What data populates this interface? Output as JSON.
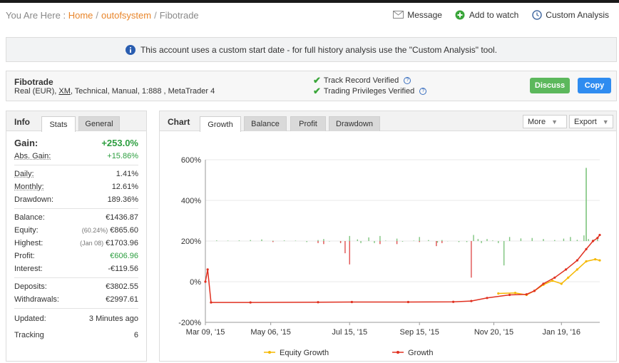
{
  "breadcrumb": {
    "prefix": "You Are Here :",
    "home": "Home",
    "section": "outofsystem",
    "current": "Fibotrade"
  },
  "actions": {
    "message": "Message",
    "watch": "Add to watch",
    "custom": "Custom Analysis"
  },
  "notice": "This account uses a custom start date - for full history analysis use the \"Custom Analysis\" tool.",
  "account": {
    "name": "Fibotrade",
    "detail_prefix": "Real (EUR),",
    "broker": "XM",
    "detail_suffix": ", Technical, Manual, 1:888 , MetaTrader 4",
    "verified_1": "Track Record Verified",
    "verified_2": "Trading Privileges Verified",
    "discuss": "Discuss",
    "copy": "Copy"
  },
  "info": {
    "title": "Info",
    "tabs": [
      "Stats",
      "General"
    ],
    "gain_label": "Gain:",
    "gain_value": "+253.0%",
    "abs_label": "Abs. Gain:",
    "abs_value": "+15.86%",
    "daily_label": "Daily:",
    "daily_value": "1.41%",
    "monthly_label": "Monthly:",
    "monthly_value": "12.61%",
    "drawdown_label": "Drawdown:",
    "drawdown_value": "189.36%",
    "balance_label": "Balance:",
    "balance_value": "€1436.87",
    "equity_label": "Equity:",
    "equity_note": "(60.24%)",
    "equity_value": "€865.60",
    "highest_label": "Highest:",
    "highest_note": "(Jan 08)",
    "highest_value": "€1703.96",
    "profit_label": "Profit:",
    "profit_value": "€606.96",
    "interest_label": "Interest:",
    "interest_value": "-€119.56",
    "deposits_label": "Deposits:",
    "deposits_value": "€3802.55",
    "withdrawals_label": "Withdrawals:",
    "withdrawals_value": "€2997.61",
    "updated_label": "Updated:",
    "updated_value": "3 Minutes ago",
    "tracking_label": "Tracking",
    "tracking_value": "6"
  },
  "chart_panel": {
    "title": "Chart",
    "tabs": [
      "Growth",
      "Balance",
      "Profit",
      "Drawdown"
    ],
    "more": "More",
    "export": "Export"
  },
  "chart_data": {
    "type": "line",
    "y_ticks": [
      "600%",
      "400%",
      "200%",
      "0%",
      "-200%"
    ],
    "ylim": [
      -200,
      600
    ],
    "x_ticks": [
      "Mar 09, '15",
      "May 06, '15",
      "Jul 15, '15",
      "Sep 15, '15",
      "Nov 20, '15",
      "Jan 19, '16"
    ],
    "x_index": [
      0,
      58,
      128,
      190,
      256,
      316
    ],
    "series": [
      {
        "name": "Equity Growth",
        "color": "#f5b800",
        "points": [
          [
            260,
            -58
          ],
          [
            275,
            -55
          ],
          [
            285,
            -65
          ],
          [
            292,
            -45
          ],
          [
            300,
            -15
          ],
          [
            308,
            5
          ],
          [
            316,
            -10
          ],
          [
            322,
            20
          ],
          [
            330,
            60
          ],
          [
            338,
            100
          ],
          [
            346,
            110
          ],
          [
            350,
            105
          ]
        ]
      },
      {
        "name": "Growth",
        "color": "#e03020",
        "points": [
          [
            0,
            0
          ],
          [
            2,
            60
          ],
          [
            5,
            -102
          ],
          [
            40,
            -102
          ],
          [
            100,
            -101
          ],
          [
            130,
            -100
          ],
          [
            180,
            -100
          ],
          [
            220,
            -99
          ],
          [
            236,
            -95
          ],
          [
            250,
            -80
          ],
          [
            270,
            -65
          ],
          [
            285,
            -62
          ],
          [
            292,
            -45
          ],
          [
            300,
            -10
          ],
          [
            310,
            20
          ],
          [
            320,
            60
          ],
          [
            330,
            105
          ],
          [
            338,
            160
          ],
          [
            344,
            200
          ],
          [
            348,
            215
          ],
          [
            350,
            230
          ]
        ]
      }
    ],
    "bars": [
      [
        3,
        200
      ],
      [
        10,
        203
      ],
      [
        20,
        202
      ],
      [
        30,
        203
      ],
      [
        40,
        205
      ],
      [
        50,
        208
      ],
      [
        60,
        202
      ],
      [
        70,
        203
      ],
      [
        80,
        202
      ],
      [
        90,
        195
      ],
      [
        100,
        205
      ],
      [
        105,
        210
      ],
      [
        110,
        198
      ],
      [
        120,
        193
      ],
      [
        128,
        225
      ],
      [
        135,
        208
      ],
      [
        138,
        190
      ],
      [
        145,
        218
      ],
      [
        150,
        190
      ],
      [
        155,
        225
      ],
      [
        160,
        202
      ],
      [
        170,
        212
      ],
      [
        175,
        197
      ],
      [
        185,
        202
      ],
      [
        190,
        220
      ],
      [
        198,
        205
      ],
      [
        206,
        192
      ],
      [
        210,
        205
      ],
      [
        215,
        199
      ],
      [
        225,
        195
      ],
      [
        232,
        195
      ],
      [
        238,
        230
      ],
      [
        242,
        210
      ],
      [
        245,
        190
      ],
      [
        250,
        210
      ],
      [
        255,
        203
      ],
      [
        260,
        190
      ],
      [
        265,
        80
      ],
      [
        270,
        220
      ],
      [
        280,
        213
      ],
      [
        290,
        215
      ],
      [
        300,
        210
      ],
      [
        310,
        205
      ],
      [
        318,
        212
      ],
      [
        324,
        220
      ],
      [
        330,
        206
      ],
      [
        336,
        228
      ],
      [
        340,
        210
      ],
      [
        344,
        207
      ],
      [
        348,
        210
      ]
    ],
    "neg_bars": [
      [
        60,
        195
      ],
      [
        100,
        190
      ],
      [
        105,
        185
      ],
      [
        120,
        190
      ],
      [
        124,
        140
      ],
      [
        128,
        85
      ],
      [
        155,
        185
      ],
      [
        170,
        185
      ],
      [
        190,
        195
      ],
      [
        205,
        175
      ],
      [
        210,
        190
      ],
      [
        236,
        20
      ]
    ],
    "tall_bar": [
      338,
      560
    ],
    "legend": [
      "Equity Growth",
      "Growth"
    ]
  }
}
